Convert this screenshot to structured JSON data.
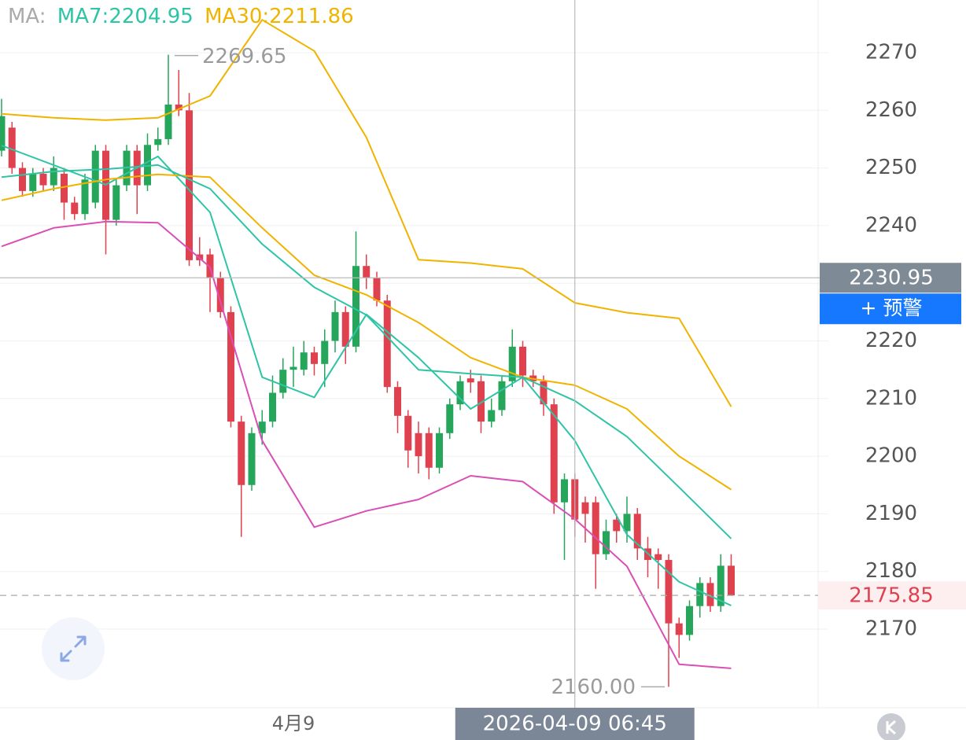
{
  "chart_data": {
    "type": "candlestick",
    "header_prefix": "MA:",
    "categories": [
      null,
      null,
      null,
      null,
      null,
      null,
      null,
      null,
      null,
      null,
      null,
      null,
      null,
      null,
      null,
      null,
      null,
      null,
      null,
      null,
      null,
      null,
      null,
      null,
      null,
      null,
      null,
      null,
      "4月9",
      null,
      null,
      null,
      null,
      null,
      null,
      null,
      null,
      null,
      null,
      null,
      null,
      null,
      null,
      null,
      null,
      null,
      null,
      null,
      null,
      null,
      null,
      null,
      null,
      null,
      null,
      "2026-04-09 06:45",
      null,
      null,
      null,
      null,
      null,
      null,
      null,
      null,
      null,
      null,
      null,
      null,
      null,
      null,
      null
    ],
    "open": [
      2253,
      2257,
      2250,
      2246,
      2249,
      2247,
      2249,
      2244,
      2242,
      2244,
      2253,
      2241,
      2247,
      2253,
      2247,
      2254,
      2255,
      2261,
      2260,
      2235,
      2235,
      2231,
      2225,
      2206,
      2195,
      2204,
      2206,
      2211,
      2215,
      2215,
      2218,
      2216,
      2220,
      2225,
      2219,
      2233,
      2231,
      2227,
      2212,
      2207,
      2204,
      2204,
      2198,
      2204,
      2209,
      2213.5,
      2213,
      2206,
      2208,
      2213,
      2219,
      2214,
      2213,
      2209,
      2192,
      2196,
      2192,
      2192,
      2183,
      2189,
      2187,
      2190,
      2184,
      2183,
      2182,
      2171,
      2169,
      2174,
      2178,
      2174,
      2181
    ],
    "high": [
      2262,
      2258,
      2251,
      2250,
      2250,
      2252,
      2250,
      2245,
      2249,
      2254,
      2254,
      2248,
      2254,
      2254,
      2256,
      2257,
      2269.65,
      2267,
      2263,
      2238,
      2236,
      2232,
      2226,
      2207,
      2205,
      2208,
      2214,
      2217,
      2219,
      2220,
      2219,
      2222,
      2227,
      2226,
      2239,
      2235,
      2232,
      2228,
      2213,
      2208,
      2206,
      2205,
      2205,
      2210,
      2214,
      2215,
      2214,
      2210,
      2214,
      2222,
      2220,
      2215,
      2214,
      2210,
      2197,
      2197,
      2193,
      2193,
      2189,
      2190,
      2193,
      2191,
      2186,
      2184,
      2183,
      2172,
      2175,
      2179,
      2179,
      2183,
      2183
    ],
    "low": [
      2252,
      2249,
      2245,
      2245,
      2246,
      2246,
      2241,
      2241,
      2241,
      2243,
      2235,
      2240,
      2246,
      2242,
      2246,
      2253,
      2254,
      2259,
      2233,
      2233,
      2225,
      2224,
      2205,
      2186,
      2194,
      2202,
      2205,
      2210,
      2212,
      2214,
      2214,
      2212,
      2218,
      2216,
      2218,
      2229,
      2226,
      2211,
      2204,
      2198,
      2197,
      2196,
      2197,
      2203,
      2208,
      2211,
      2204,
      2205,
      2207,
      2212,
      2212,
      2212,
      2207,
      2190,
      2182,
      2186,
      2185,
      2177,
      2182,
      2185,
      2185,
      2182,
      2179,
      2177,
      2160,
      2165,
      2168,
      2172,
      2173,
      2173,
      2176
    ],
    "close": [
      2259,
      2250,
      2246,
      2249,
      2247,
      2250,
      2244,
      2242,
      2248,
      2253,
      2241,
      2247,
      2253,
      2247,
      2254,
      2255,
      2261,
      2260,
      2234,
      2234,
      2231,
      2225,
      2206,
      2195,
      2204,
      2206,
      2211,
      2215,
      2215.5,
      2218,
      2216,
      2220,
      2225,
      2219,
      2233,
      2231,
      2227,
      2212,
      2207,
      2201,
      2200,
      2198,
      2204,
      2209,
      2213,
      2212.8,
      2206,
      2208,
      2213,
      2219,
      2214,
      2213,
      2209,
      2192,
      2196,
      2189,
      2190,
      2183,
      2187,
      2187,
      2190,
      2184,
      2182,
      2182,
      2171,
      2169,
      2174,
      2178,
      2174,
      2181,
      2175.85
    ],
    "up_color": "#26a65b",
    "down_color": "#e0414f",
    "lines": [
      {
        "label": "MA7:2204.95",
        "color": "#2ec4a6",
        "x": [
          0,
          5,
          10,
          15,
          20,
          25,
          30,
          35,
          40,
          45,
          50,
          55,
          60,
          65,
          70
        ],
        "values": [
          2253.9,
          2250.5,
          2247.1,
          2252,
          2242.3,
          2213.7,
          2210.2,
          2224.6,
          2217.1,
          2208.2,
          2213.7,
          2202.7,
          2186.4,
          2178.2,
          2174.1
        ]
      },
      {
        "label": "MA30:2211.86",
        "color": "#f0b400",
        "x": [
          0,
          5,
          10,
          15,
          20,
          25,
          30,
          35,
          40,
          45,
          50,
          55,
          60,
          65,
          70
        ],
        "values": [
          2244.4,
          2246.4,
          2248.0,
          2248.9,
          2248.4,
          2239.6,
          2231.4,
          2228.0,
          2223.2,
          2217.1,
          2213.7,
          2212.3,
          2208.2,
          2200.0,
          2194.2
        ]
      },
      {
        "color": "#f0b400",
        "x": [
          0,
          5,
          10,
          15,
          20,
          25,
          30,
          35,
          40,
          45,
          50,
          55,
          60,
          65,
          70
        ],
        "values": [
          2259.4,
          2258.7,
          2258.3,
          2258.7,
          2262.5,
          2275.7,
          2270.3,
          2255.3,
          2234.1,
          2233.5,
          2232.5,
          2226.6,
          2224.9,
          2223.9,
          2208.6
        ]
      },
      {
        "color": "#2ec4a6",
        "x": [
          0,
          5,
          10,
          15,
          20,
          25,
          30,
          35,
          40,
          45,
          50,
          55,
          60,
          65,
          70
        ],
        "values": [
          2248.4,
          2249.4,
          2249.8,
          2250.5,
          2246.4,
          2236.8,
          2229.3,
          2224.5,
          2215.0,
          2214.3,
          2213.7,
          2209.6,
          2203.4,
          2194.6,
          2185.7
        ]
      },
      {
        "color": "#d94fb5",
        "x": [
          0,
          5,
          10,
          15,
          20,
          25,
          30,
          35,
          40,
          45,
          50,
          55,
          60,
          65,
          70
        ],
        "values": [
          2236.4,
          2239.6,
          2240.7,
          2240.5,
          2232.8,
          2202.7,
          2187.7,
          2190.5,
          2192.5,
          2196.6,
          2195.6,
          2189.1,
          2180.9,
          2163.9,
          2163.2
        ]
      }
    ],
    "high_label": "2269.65",
    "low_label": "2160.00",
    "crosshair": {
      "price": 2230.95,
      "category": 55
    },
    "alert_button": "+ 预警",
    "ylim": [
      2156.36,
      2279.14
    ],
    "yticks": [
      2170,
      2180,
      2190,
      2200,
      2210,
      2220,
      2230,
      2240,
      2250,
      2260,
      2270
    ],
    "grid": true
  }
}
